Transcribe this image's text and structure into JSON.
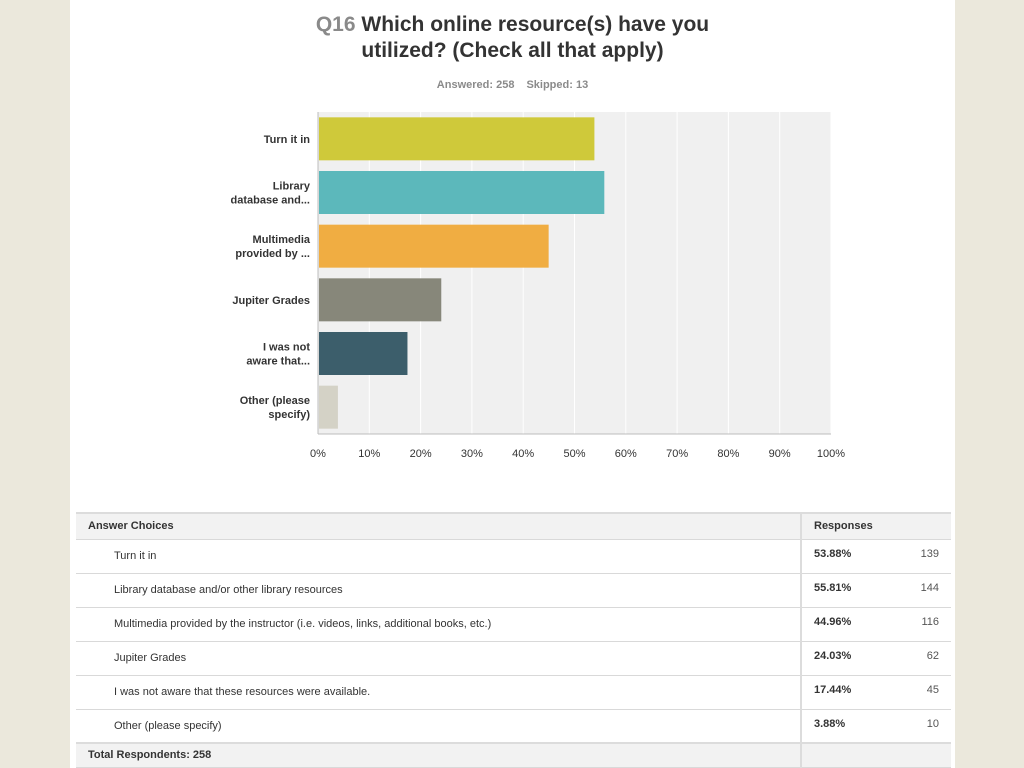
{
  "question": {
    "number": "Q16",
    "title_line1": "Which online resource(s) have you",
    "title_line2": "utilized? (Check all that apply)",
    "answered": "Answered: 258",
    "skipped": "Skipped: 13"
  },
  "chart_data": {
    "type": "bar",
    "orientation": "horizontal",
    "categories": [
      [
        "Turn it in"
      ],
      [
        "Library",
        "database and..."
      ],
      [
        "Multimedia",
        "provided by ..."
      ],
      [
        "Jupiter Grades"
      ],
      [
        "I was not",
        "aware that..."
      ],
      [
        "Other (please",
        "specify)"
      ]
    ],
    "values": [
      53.88,
      55.81,
      44.96,
      24.03,
      17.44,
      3.88
    ],
    "colors": [
      "#cfc93a",
      "#5cb8bb",
      "#f0ad42",
      "#87877a",
      "#3c5e6b",
      "#d4d2c6"
    ],
    "xlim": [
      0,
      100
    ],
    "xticks": [
      "0%",
      "10%",
      "20%",
      "30%",
      "40%",
      "50%",
      "60%",
      "70%",
      "80%",
      "90%",
      "100%"
    ],
    "grid": true,
    "plot_background": "#f0f0f0"
  },
  "table": {
    "header_choices": "Answer Choices",
    "header_responses": "Responses",
    "rows": [
      {
        "choice": "Turn it in",
        "percent": "53.88%",
        "count": "139"
      },
      {
        "choice": "Library database and/or other library resources",
        "percent": "55.81%",
        "count": "144"
      },
      {
        "choice": "Multimedia provided by the instructor (i.e. videos, links, additional books, etc.)",
        "percent": "44.96%",
        "count": "116"
      },
      {
        "choice": "Jupiter Grades",
        "percent": "24.03%",
        "count": "62"
      },
      {
        "choice": "I was not aware that these resources were available.",
        "percent": "17.44%",
        "count": "45"
      },
      {
        "choice": "Other (please specify)",
        "percent": "3.88%",
        "count": "10"
      }
    ],
    "total": "Total Respondents: 258"
  }
}
